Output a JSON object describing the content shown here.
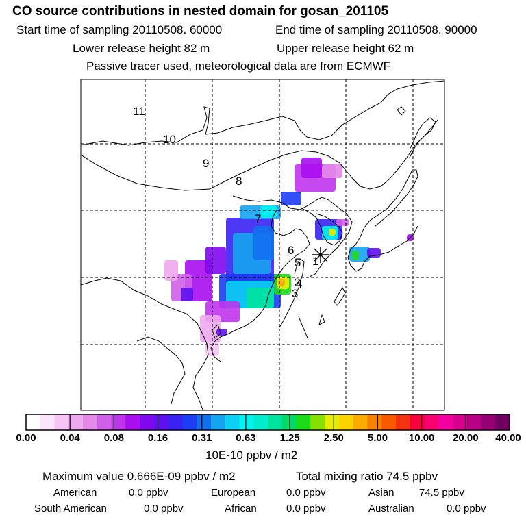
{
  "header": {
    "title": "CO  source contributions in nested domain for gosan_201105",
    "start_time": "Start time of sampling 20110508. 60000",
    "end_time": "End time of sampling 20110508. 90000",
    "lower_height": "Lower release height   82 m",
    "upper_height": "Upper release height   62 m",
    "tracer_note": "Passive tracer used, meteorological data are from ECMWF"
  },
  "map": {
    "receptor_marker": "station-star",
    "region_labels": [
      "1",
      "2",
      "3",
      "4",
      "5",
      "6",
      "7",
      "8",
      "9",
      "10",
      "11"
    ]
  },
  "colorbar": {
    "tick_labels": [
      "0.00",
      "0.04",
      "0.08",
      "0.16",
      "0.31",
      "0.63",
      "1.25",
      "2.50",
      "5.00",
      "10.00",
      "20.00",
      "40.00"
    ],
    "units": "10E-10 ppbv / m2",
    "colors": [
      "#ffffff",
      "#fbe5fb",
      "#f5c5f5",
      "#eea8f0",
      "#e38ae9",
      "#d060e8",
      "#bf35ec",
      "#a90df0",
      "#8008ee",
      "#5f10f0",
      "#3a22f4",
      "#1d3cf5",
      "#1170f0",
      "#16a4ef",
      "#0cd0f4",
      "#00f4f0",
      "#00eccd",
      "#00e39e",
      "#00db66",
      "#1edb1a",
      "#86e000",
      "#e7ed00",
      "#fbd400",
      "#fcab00",
      "#f98300",
      "#f95a00",
      "#f53211",
      "#f8003b",
      "#f8006e",
      "#f500a0",
      "#d8008f",
      "#b80085",
      "#950075",
      "#700060"
    ]
  },
  "footer": {
    "max_value": "Maximum value  0.666E-09 ppbv / m2",
    "total_mixing": "Total mixing ratio       74.5 ppbv",
    "american_label": "American",
    "american_value": "0.0 ppbv",
    "european_label": "European",
    "european_value": "0.0 ppbv",
    "asian_label": "Asian",
    "asian_value": "74.5 ppbv",
    "south_american_label": "South American",
    "south_american_value": "0.0 ppbv",
    "african_label": "African",
    "african_value": "0.0 ppbv",
    "australian_label": "Australian",
    "australian_value": "0.0 ppbv"
  }
}
